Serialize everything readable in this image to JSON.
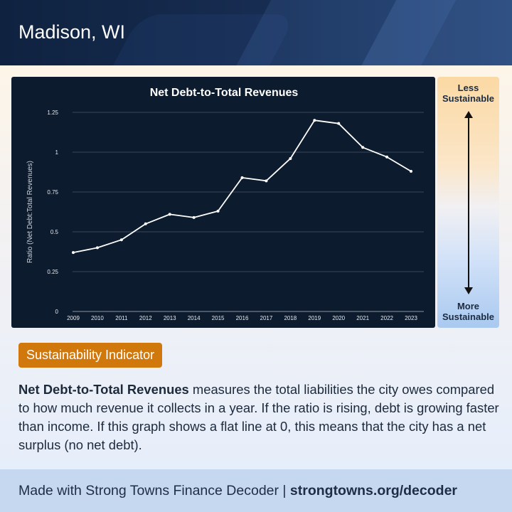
{
  "header": {
    "city": "Madison, WI"
  },
  "scale": {
    "top_line1": "Less",
    "top_line2": "Sustainable",
    "bottom_line1": "More",
    "bottom_line2": "Sustainable"
  },
  "badge": {
    "label": "Sustainability Indicator"
  },
  "description": {
    "term": "Net Debt-to-Total Revenues",
    "text": " measures the total liabilities the city owes compared to how much revenue it collects in a year. If the ratio is rising, debt is growing faster than income. If this graph shows a flat line at 0, this means that the city has a net surplus (no net debt)."
  },
  "footer": {
    "prefix": "Made with Strong Towns Finance Decoder | ",
    "link": "strongtowns.org/decoder"
  },
  "colors": {
    "panel": "#0d1b2e",
    "line": "#ffffff",
    "badge": "#d0780b"
  },
  "chart_data": {
    "type": "line",
    "title": "Net Debt-to-Total Revenues",
    "xlabel": "",
    "ylabel": "Ratio (Net Debt:Total Revenues)",
    "categories": [
      "2009",
      "2010",
      "2011",
      "2012",
      "2013",
      "2014",
      "2015",
      "2016",
      "2017",
      "2018",
      "2019",
      "2020",
      "2021",
      "2022",
      "2023"
    ],
    "values": [
      0.37,
      0.4,
      0.45,
      0.55,
      0.61,
      0.59,
      0.63,
      0.84,
      0.82,
      0.96,
      1.2,
      1.18,
      1.03,
      0.97,
      0.88
    ],
    "yticks": [
      "0",
      "0.25",
      "0.5",
      "0.75",
      "1",
      "1.25"
    ],
    "ylim": [
      0,
      1.25
    ],
    "grid": true,
    "legend": "none"
  }
}
